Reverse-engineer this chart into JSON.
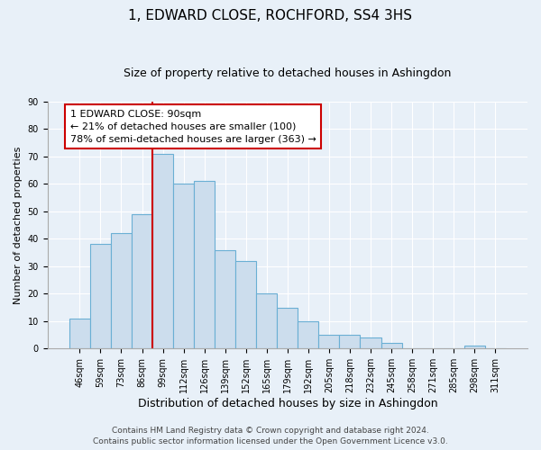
{
  "title": "1, EDWARD CLOSE, ROCHFORD, SS4 3HS",
  "subtitle": "Size of property relative to detached houses in Ashingdon",
  "xlabel": "Distribution of detached houses by size in Ashingdon",
  "ylabel": "Number of detached properties",
  "bar_labels": [
    "46sqm",
    "59sqm",
    "73sqm",
    "86sqm",
    "99sqm",
    "112sqm",
    "126sqm",
    "139sqm",
    "152sqm",
    "165sqm",
    "179sqm",
    "192sqm",
    "205sqm",
    "218sqm",
    "232sqm",
    "245sqm",
    "258sqm",
    "271sqm",
    "285sqm",
    "298sqm",
    "311sqm"
  ],
  "bar_values": [
    11,
    38,
    42,
    49,
    71,
    60,
    61,
    36,
    32,
    20,
    15,
    10,
    5,
    5,
    4,
    2,
    0,
    0,
    0,
    1,
    0
  ],
  "bar_color": "#ccdded",
  "bar_edge_color": "#6aafd4",
  "highlight_line_color": "#cc0000",
  "annotation_line1": "1 EDWARD CLOSE: 90sqm",
  "annotation_line2": "← 21% of detached houses are smaller (100)",
  "annotation_line3": "78% of semi-detached houses are larger (363) →",
  "annotation_box_color": "#ffffff",
  "annotation_box_edge": "#cc0000",
  "ylim": [
    0,
    90
  ],
  "yticks": [
    0,
    10,
    20,
    30,
    40,
    50,
    60,
    70,
    80,
    90
  ],
  "bg_color": "#e8f0f8",
  "plot_bg_color": "#e8f0f8",
  "footer_line1": "Contains HM Land Registry data © Crown copyright and database right 2024.",
  "footer_line2": "Contains public sector information licensed under the Open Government Licence v3.0.",
  "title_fontsize": 11,
  "subtitle_fontsize": 9,
  "xlabel_fontsize": 9,
  "ylabel_fontsize": 8,
  "tick_fontsize": 7,
  "footer_fontsize": 6.5,
  "annotation_fontsize": 8
}
